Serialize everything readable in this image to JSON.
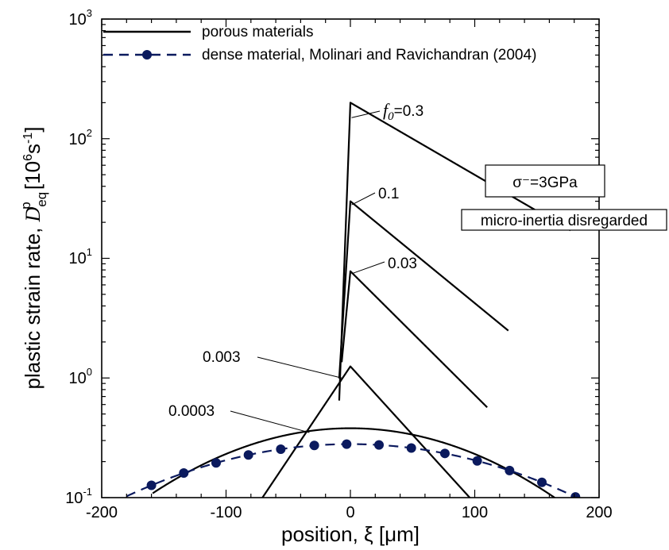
{
  "chart_data": {
    "type": "line",
    "xlabel": "position, ξ [μm]",
    "ylabel": "plastic strain rate, Dpeq [10⁶s⁻¹]",
    "xlim": [
      -200,
      200
    ],
    "ylim": [
      0.1,
      1000
    ],
    "yscale": "log",
    "x_ticks": [
      "-200",
      "-100",
      "0",
      "100",
      "200"
    ],
    "y_ticks": [
      {
        "base": "10",
        "exp": "-1"
      },
      {
        "base": "10",
        "exp": "0"
      },
      {
        "base": "10",
        "exp": "1"
      },
      {
        "base": "10",
        "exp": "2"
      },
      {
        "base": "10",
        "exp": "3"
      }
    ],
    "ylabel_parts": {
      "text": "plastic strain rate, ",
      "symbol": "D",
      "sup": "p",
      "sub": "eq",
      "unit": " [10",
      "unit_sup1": "6",
      "unit_mid": "s",
      "unit_sup2": "-1",
      "unit_end": "]"
    },
    "legend": {
      "placement": "top-left",
      "entries": [
        {
          "label": "porous materials",
          "style": "solid",
          "color": "#000000"
        },
        {
          "label": "dense material, Molinari and Ravichandran (2004)",
          "style": "dashed-marker",
          "color": "#0b1a5e"
        }
      ]
    },
    "annotations": {
      "stress_box": "σ⁻=3GPa",
      "inertia_box": "micro-inertia disregarded",
      "f0_prefix": "f",
      "f0_sub": "0",
      "labels": [
        "=0.3",
        "0.1",
        "0.03",
        "0.003",
        "0.0003"
      ]
    },
    "series": [
      {
        "f0": "0.3",
        "peak": 200,
        "x_left": -7,
        "left_decay": 1.57,
        "x_right": 175,
        "right_decay": 72
      },
      {
        "f0": "0.1",
        "peak": 30,
        "x_left": -7,
        "left_decay": 2.64,
        "x_right": 125,
        "right_decay": 51
      },
      {
        "f0": "0.03",
        "peak": 7.8,
        "x_left": -5,
        "left_decay": 4,
        "x_right": 108,
        "right_decay": 42
      },
      {
        "f0": "0.003",
        "peak": 1.25,
        "x_left": -73,
        "left_decay": 28,
        "x_right": 100,
        "right_decay": 38
      },
      {
        "f0": "0.0003",
        "peak": 0.38,
        "x_left": -157,
        "sigma": 100.5
      }
    ],
    "dense_material": {
      "name": "dense material, Molinari and Ravichandran (2004)",
      "x_range": [
        -180,
        200
      ],
      "peak": 0.28,
      "sigma": 127,
      "marker_x": [
        -160,
        -134,
        -108,
        -82,
        -56,
        -29,
        -3,
        23,
        49,
        76,
        102,
        128,
        154,
        181
      ]
    }
  }
}
